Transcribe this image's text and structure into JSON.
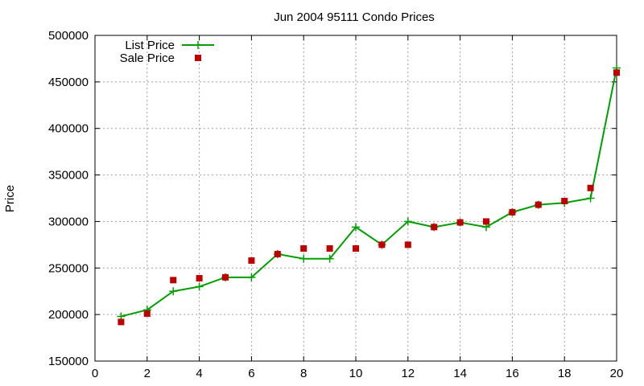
{
  "chart_data": {
    "type": "line",
    "title": "Jun 2004 95111 Condo Prices",
    "xlabel": "",
    "ylabel": "Price",
    "xlim": [
      0,
      20
    ],
    "ylim": [
      150000,
      500000
    ],
    "x_ticks": [
      0,
      2,
      4,
      6,
      8,
      10,
      12,
      14,
      16,
      18,
      20
    ],
    "y_ticks": [
      150000,
      200000,
      250000,
      300000,
      350000,
      400000,
      450000,
      500000
    ],
    "grid": true,
    "legend_position": "top-left",
    "series": [
      {
        "name": "List Price",
        "style": "line-with-plus-markers",
        "color": "#00a000",
        "x": [
          1,
          2,
          3,
          4,
          5,
          6,
          7,
          8,
          9,
          10,
          11,
          12,
          13,
          14,
          15,
          16,
          17,
          18,
          19,
          20
        ],
        "values": [
          198000,
          205000,
          225000,
          230000,
          240000,
          240000,
          265000,
          260000,
          260000,
          294000,
          275000,
          300000,
          294000,
          299000,
          294000,
          310000,
          318000,
          320000,
          325000,
          465000
        ]
      },
      {
        "name": "Sale Price",
        "style": "square-points",
        "color": "#c00000",
        "x": [
          1,
          2,
          3,
          4,
          5,
          6,
          7,
          8,
          9,
          10,
          11,
          12,
          13,
          14,
          15,
          16,
          17,
          18,
          19,
          20
        ],
        "values": [
          192000,
          201000,
          237000,
          239000,
          240000,
          258000,
          265000,
          271000,
          271000,
          271000,
          275000,
          275000,
          294000,
          299000,
          300000,
          310000,
          318000,
          322000,
          336000,
          460000
        ]
      }
    ]
  }
}
